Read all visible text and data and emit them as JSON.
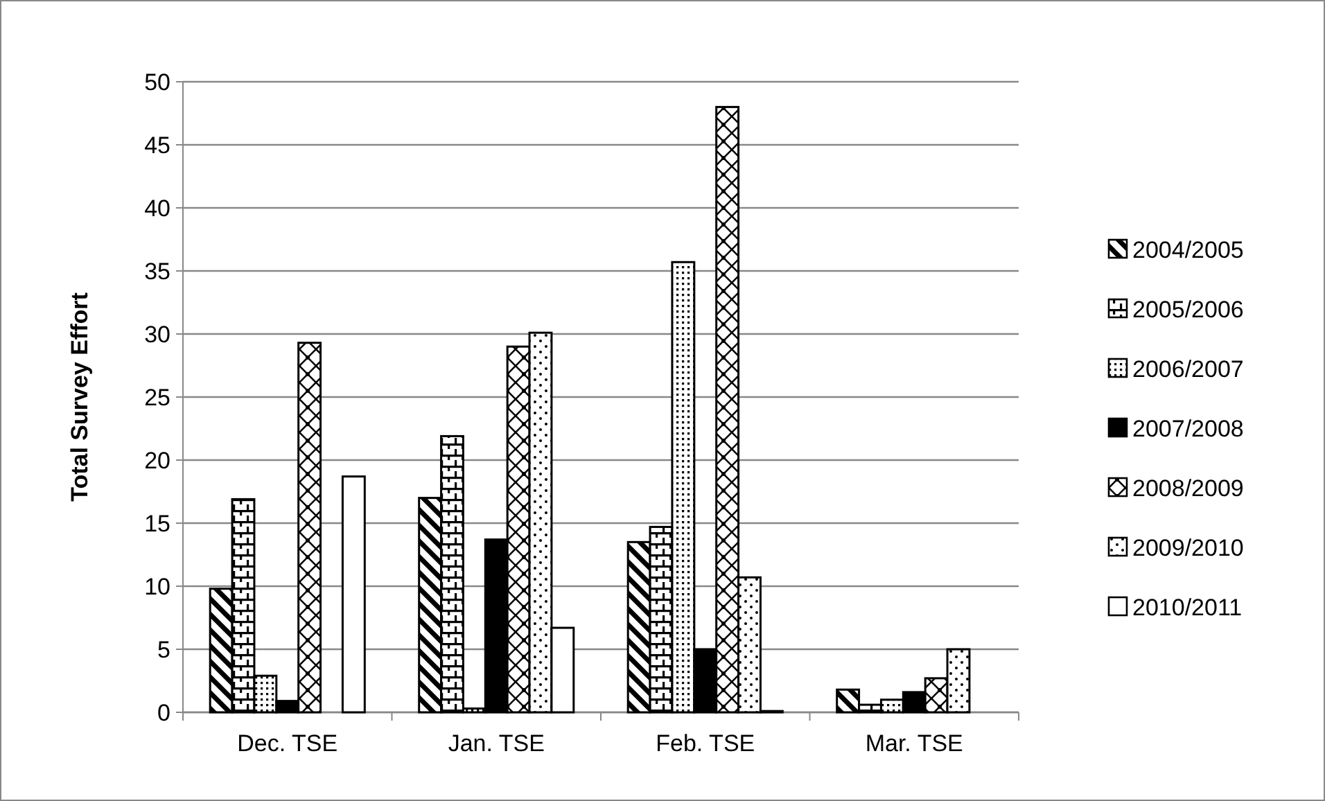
{
  "chart_data": {
    "type": "bar",
    "ylabel": "Total Survey Effort",
    "categories": [
      "Dec. TSE",
      "Jan. TSE",
      "Feb. TSE",
      "Mar. TSE"
    ],
    "series": [
      {
        "name": "2004/2005",
        "color": "#000000",
        "values": [
          9.8,
          17,
          13.5,
          1.8
        ]
      },
      {
        "name": "2005/2006",
        "color": "#000000",
        "values": [
          16.9,
          21.9,
          14.7,
          0.6
        ]
      },
      {
        "name": "2006/2007",
        "color": "#000000",
        "values": [
          2.9,
          0.3,
          35.7,
          1.0
        ]
      },
      {
        "name": "2007/2008",
        "color": "#000000",
        "values": [
          0.9,
          13.7,
          5,
          1.6
        ]
      },
      {
        "name": "2008/2009",
        "color": "#000000",
        "values": [
          29.3,
          29,
          48,
          2.7
        ]
      },
      {
        "name": "2009/2010",
        "color": "#000000",
        "values": [
          0,
          30.1,
          10.7,
          5.0
        ]
      },
      {
        "name": "2010/2011",
        "color": "#ffffff",
        "values": [
          18.7,
          6.7,
          0.1,
          0
        ]
      }
    ],
    "ylim": [
      0,
      50
    ],
    "yticks": [
      0,
      5,
      10,
      15,
      20,
      25,
      30,
      35,
      40,
      45,
      50
    ],
    "grid": "y",
    "legend": "right"
  }
}
